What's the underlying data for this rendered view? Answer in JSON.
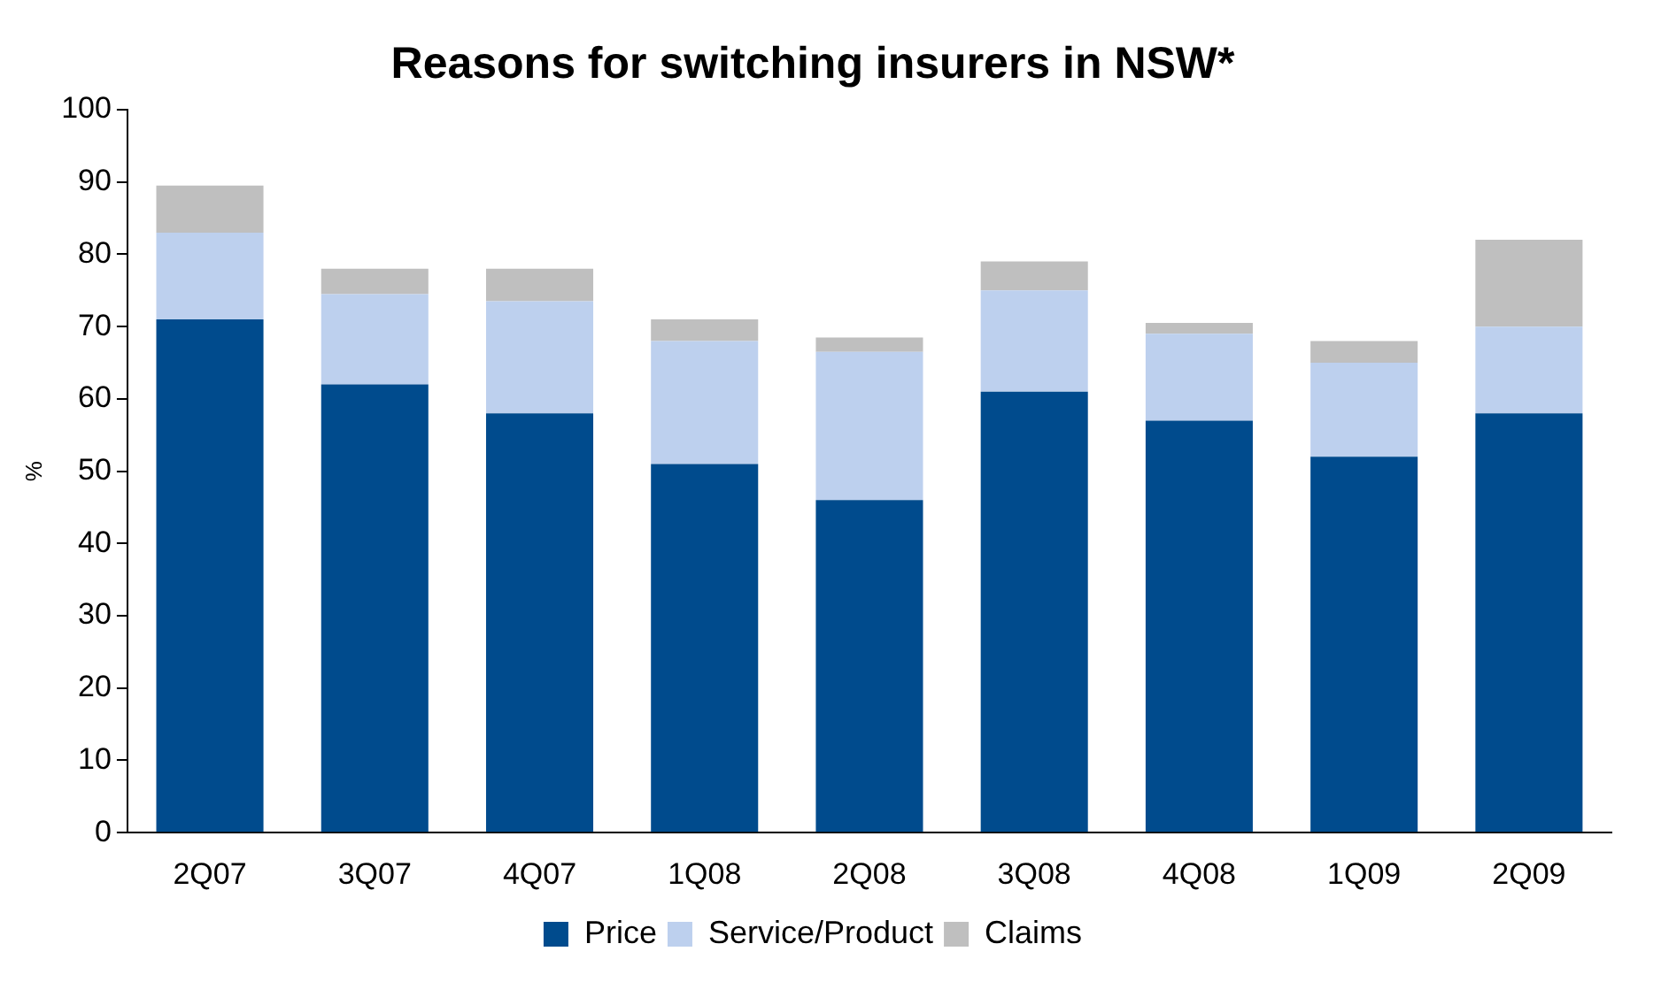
{
  "chart_data": {
    "type": "bar",
    "title": "Reasons for switching insurers in NSW*",
    "ylabel": "%",
    "categories": [
      "2Q07",
      "3Q07",
      "4Q07",
      "1Q08",
      "2Q08",
      "3Q08",
      "4Q08",
      "1Q09",
      "2Q09"
    ],
    "stacked": true,
    "ylim": [
      0,
      100
    ],
    "yticks": [
      0,
      10,
      20,
      30,
      40,
      50,
      60,
      70,
      80,
      90,
      100
    ],
    "grid": false,
    "legend": "bottom",
    "series": [
      {
        "name": "Price",
        "color": "#004b8d",
        "values": [
          71,
          62,
          58,
          51,
          46,
          61,
          57,
          52,
          58
        ]
      },
      {
        "name": "Service/Product",
        "color": "#bdd0ee",
        "values": [
          12,
          12.5,
          15.5,
          17,
          20.5,
          14,
          12,
          13,
          12
        ]
      },
      {
        "name": "Claims",
        "color": "#bfbfbf",
        "values": [
          6.5,
          3.5,
          4.5,
          3,
          2,
          4,
          1.5,
          3,
          12
        ]
      }
    ]
  }
}
